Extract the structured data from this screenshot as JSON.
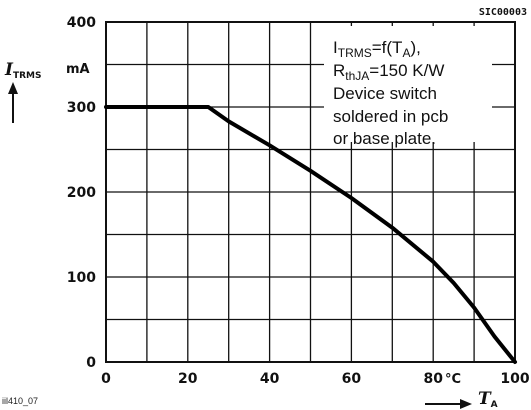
{
  "figure_code": "SIC00003",
  "image_ref": "iil410_07",
  "chart_data": {
    "type": "line",
    "x_axis": {
      "symbol": "T",
      "subscript": "A",
      "unit": "°C",
      "range": [
        0,
        100
      ],
      "ticks": [
        0,
        20,
        40,
        60,
        80,
        100
      ],
      "tick_labels": [
        "0",
        "20",
        "40",
        "60",
        "80",
        "100"
      ]
    },
    "y_axis": {
      "symbol": "I",
      "subscript": "TRMS",
      "unit": "mA",
      "range": [
        0,
        400
      ],
      "ticks": [
        0,
        100,
        200,
        300,
        400
      ],
      "tick_labels": [
        "0",
        "100",
        "200",
        "300",
        "400"
      ]
    },
    "grid": true,
    "series": [
      {
        "x": [
          0,
          25,
          30,
          40,
          50,
          60,
          70,
          80,
          85,
          90,
          95,
          100
        ],
        "y": [
          300,
          300,
          283,
          255,
          225,
          193,
          158,
          118,
          93,
          64,
          30,
          0
        ]
      }
    ],
    "annotation": {
      "line1": {
        "a": "I",
        "a_sub": "TRMS",
        "b": "=f(T",
        "b_sub": "A",
        "c": "),"
      },
      "line2": {
        "a": "R",
        "a_sub": "thJA",
        "b": "=150 K/W"
      },
      "line3": "Device switch",
      "line4": "soldered in pcb",
      "line5": "or base plate."
    }
  }
}
